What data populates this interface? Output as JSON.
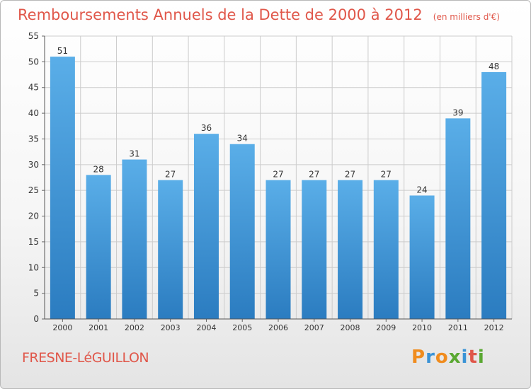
{
  "chart_data": {
    "type": "bar",
    "title": "Remboursements Annuels de la Dette de 2000 à 2012",
    "unit_note": "(en milliers d'€)",
    "categories": [
      "2000",
      "2001",
      "2002",
      "2003",
      "2004",
      "2005",
      "2006",
      "2007",
      "2008",
      "2009",
      "2010",
      "2011",
      "2012"
    ],
    "values": [
      51,
      28,
      31,
      27,
      36,
      34,
      27,
      27,
      27,
      27,
      24,
      39,
      48
    ],
    "ylim": [
      0,
      55
    ],
    "yticks": [
      0,
      5,
      10,
      15,
      20,
      25,
      30,
      35,
      40,
      45,
      50,
      55
    ],
    "grid": true,
    "bar_color": "#3a93d6",
    "xlabel": "",
    "ylabel": ""
  },
  "commune": "FRESNE-LéGUILLON",
  "brand": {
    "letters": [
      "P",
      "r",
      "o",
      "x",
      "i",
      "t",
      "i"
    ],
    "colors": [
      "#f08c1e",
      "#3a93d6",
      "#f08c1e",
      "#5aa832",
      "#3a93d6",
      "#e0574a",
      "#5aa832"
    ]
  },
  "colors": {
    "title": "#e0574a",
    "grid": "#cccccc",
    "axis_text": "#333333"
  }
}
